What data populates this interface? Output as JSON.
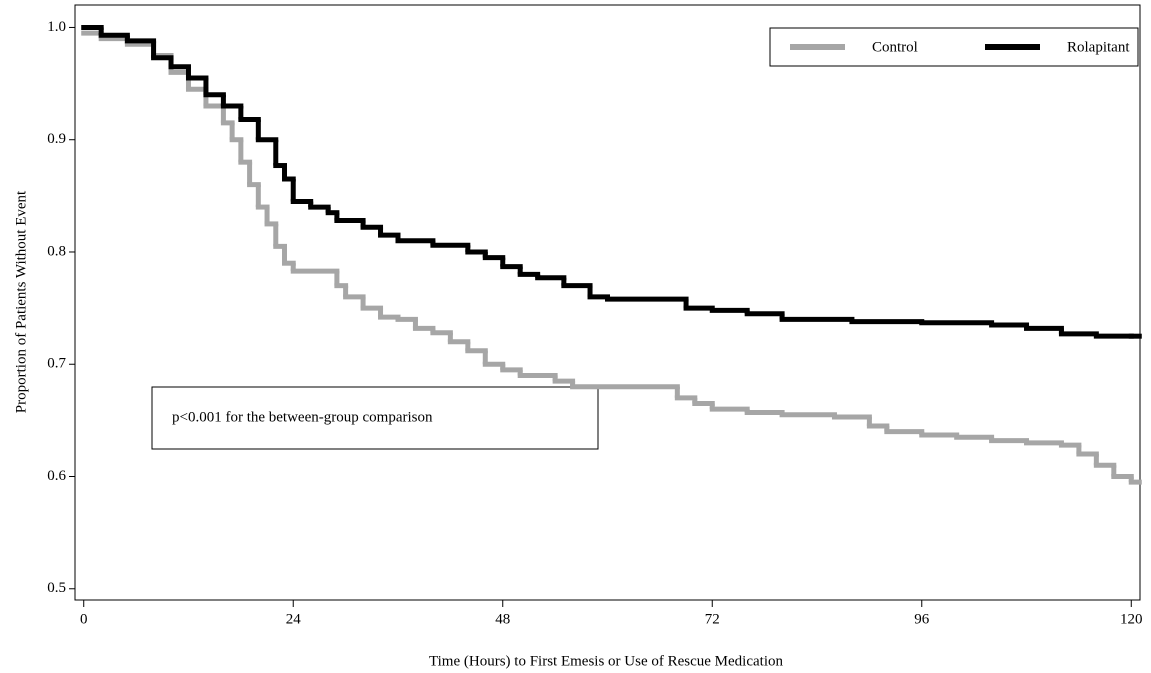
{
  "chart_data": {
    "type": "line",
    "drawstyle": "steps-post",
    "xlabel": "Time (Hours) to First Emesis or Use of Rescue Medication",
    "ylabel": "Proportion of Patients Without Event",
    "annotation": "p<0.001 for the between-group comparison",
    "legend": "upper right",
    "xlim": [
      -1,
      121
    ],
    "ylim": [
      0.49,
      1.02
    ],
    "xticks": [
      0,
      24,
      48,
      72,
      96,
      120
    ],
    "yticks": [
      0.5,
      0.6,
      0.7,
      0.8,
      0.9,
      {
        "value": 1,
        "label": "1.0"
      }
    ],
    "series": [
      {
        "name": "Control",
        "color": "#a6a6a6",
        "x": [
          0,
          2,
          5,
          8,
          10,
          12,
          14,
          16,
          17,
          18,
          19,
          20,
          21,
          22,
          23,
          24,
          29,
          30,
          32,
          34,
          36,
          38,
          40,
          42,
          44,
          46,
          48,
          50,
          54,
          56,
          68,
          70,
          72,
          76,
          80,
          86,
          90,
          92,
          96,
          100,
          104,
          108,
          112,
          114,
          116,
          118,
          120
        ],
        "values": [
          0.995,
          0.99,
          0.985,
          0.975,
          0.96,
          0.945,
          0.93,
          0.915,
          0.9,
          0.88,
          0.86,
          0.84,
          0.825,
          0.805,
          0.79,
          0.783,
          0.77,
          0.76,
          0.75,
          0.742,
          0.74,
          0.732,
          0.728,
          0.72,
          0.712,
          0.7,
          0.695,
          0.69,
          0.685,
          0.68,
          0.67,
          0.665,
          0.66,
          0.657,
          0.655,
          0.653,
          0.645,
          0.64,
          0.637,
          0.635,
          0.632,
          0.63,
          0.628,
          0.62,
          0.61,
          0.6,
          0.595
        ]
      },
      {
        "name": "Rolapitant",
        "color": "#000000",
        "x": [
          0,
          2,
          5,
          8,
          10,
          12,
          14,
          16,
          18,
          20,
          22,
          23,
          24,
          26,
          28,
          29,
          32,
          34,
          36,
          40,
          44,
          46,
          48,
          50,
          52,
          55,
          58,
          60,
          69,
          72,
          76,
          80,
          88,
          96,
          104,
          108,
          112,
          116,
          120
        ],
        "values": [
          1,
          0.993,
          0.988,
          0.973,
          0.965,
          0.955,
          0.94,
          0.93,
          0.918,
          0.9,
          0.877,
          0.865,
          0.845,
          0.84,
          0.835,
          0.828,
          0.822,
          0.815,
          0.81,
          0.806,
          0.8,
          0.795,
          0.787,
          0.78,
          0.777,
          0.77,
          0.76,
          0.758,
          0.75,
          0.748,
          0.745,
          0.74,
          0.738,
          0.737,
          0.735,
          0.732,
          0.727,
          0.725,
          0.725
        ]
      }
    ]
  }
}
